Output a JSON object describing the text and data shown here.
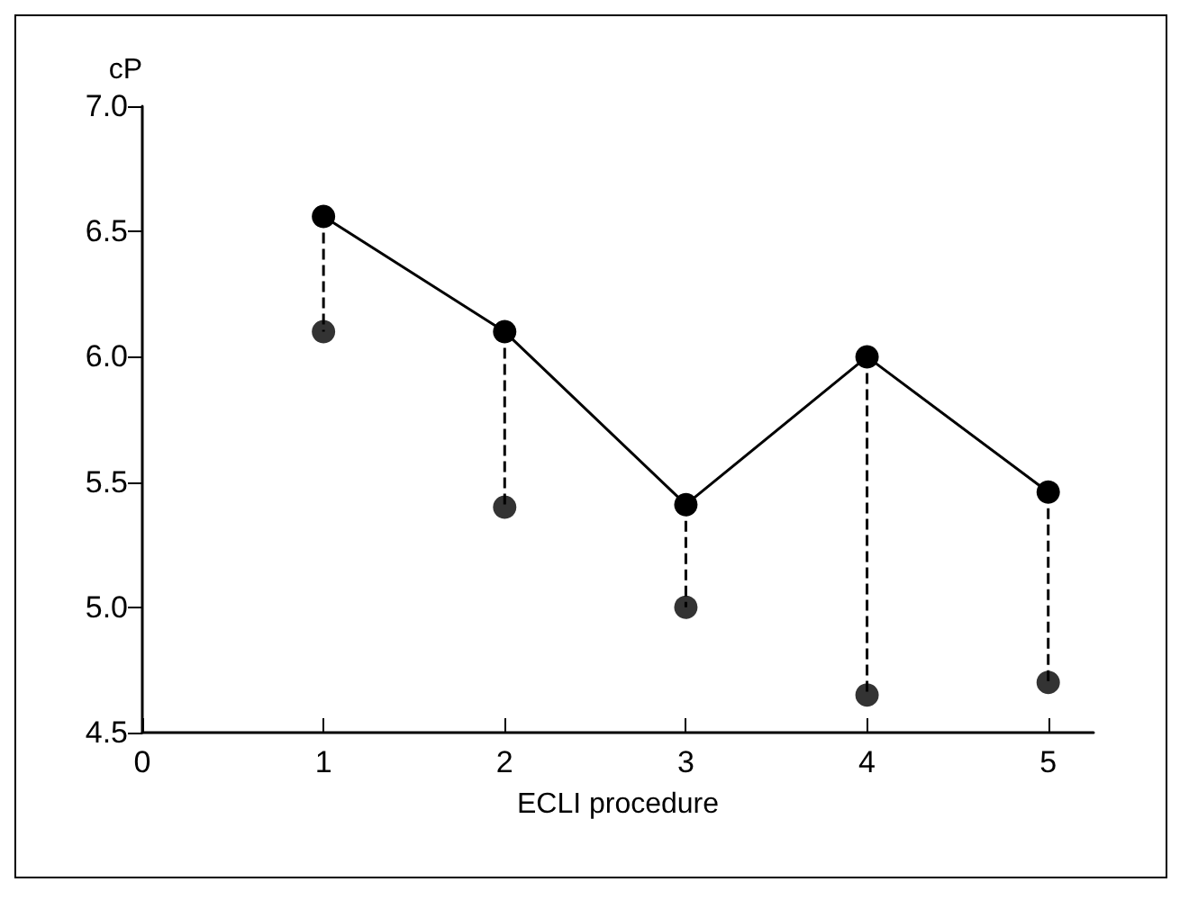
{
  "chart_data": {
    "type": "line",
    "xlabel": "ECLI procedure",
    "ylabel": "cP",
    "xlim": [
      0,
      5.25
    ],
    "xticks": [
      0,
      1,
      2,
      3,
      4,
      5
    ],
    "ylim": [
      4.5,
      7.0
    ],
    "yticks": [
      {
        "value": 4.5,
        "label": "4.5"
      },
      {
        "value": 5.0,
        "label": "5.0"
      },
      {
        "value": 5.5,
        "label": "5.5"
      },
      {
        "value": 6.0,
        "label": "6.0"
      },
      {
        "value": 6.5,
        "label": "6.5"
      },
      {
        "value": 7.0,
        "label": "7.0"
      }
    ],
    "x": [
      1,
      2,
      3,
      4,
      5
    ],
    "grid": false,
    "marker": "circle",
    "series": [
      {
        "color": "#000000",
        "values": [
          6.56,
          6.1,
          5.41,
          6.0,
          5.46
        ],
        "line_style": "solid"
      },
      {
        "type": "scatter",
        "color": "#000000",
        "values": [
          6.1,
          5.4,
          5.0,
          4.65,
          4.7
        ]
      },
      {
        "color": "#000000",
        "x": [
          1,
          1
        ],
        "values": [
          6.56,
          6.1
        ],
        "line_style": "dashed",
        "marker": "none"
      },
      {
        "color": "#000000",
        "x": [
          2,
          2
        ],
        "values": [
          6.1,
          5.4
        ],
        "line_style": "dashed",
        "marker": "none"
      },
      {
        "color": "#000000",
        "x": [
          3,
          3
        ],
        "values": [
          5.41,
          5.0
        ],
        "line_style": "dashed",
        "marker": "none"
      },
      {
        "color": "#000000",
        "x": [
          4,
          4
        ],
        "values": [
          6.0,
          4.65
        ],
        "line_style": "dashed",
        "marker": "none"
      },
      {
        "color": "#000000",
        "x": [
          5,
          5
        ],
        "values": [
          5.46,
          4.7
        ],
        "line_style": "dashed",
        "marker": "none"
      }
    ]
  }
}
